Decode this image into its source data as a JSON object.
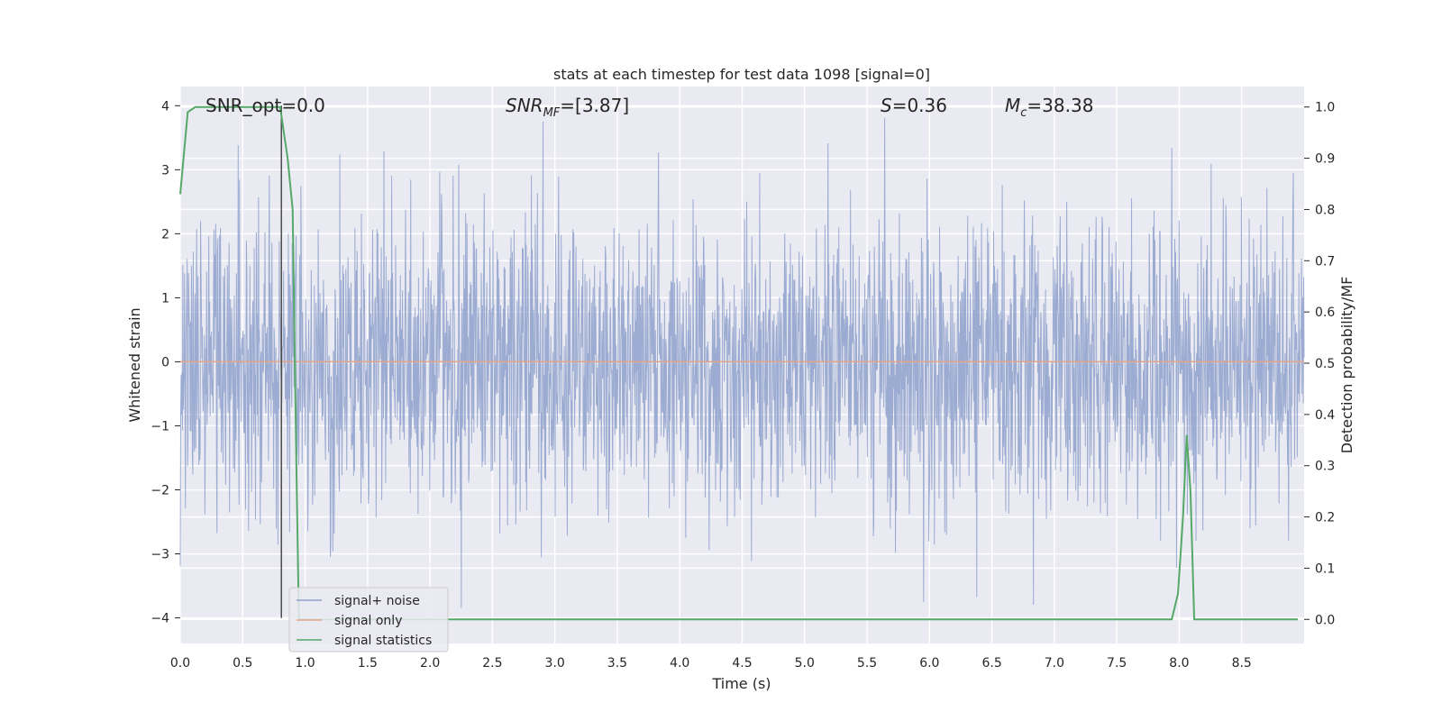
{
  "chart_data": {
    "type": "line",
    "title": "stats at each timestep for test data 1098 [signal=0]",
    "xlabel": "Time (s)",
    "ylabel": "Whitened strain",
    "y2label": "Detection probability/MF",
    "xlim": [
      0.0,
      9.0
    ],
    "ylim": [
      -4.4,
      4.3
    ],
    "y2lim": [
      -0.047,
      1.04
    ],
    "xticks": [
      "0.0",
      "0.5",
      "1.0",
      "1.5",
      "2.0",
      "2.5",
      "3.0",
      "3.5",
      "4.0",
      "4.5",
      "5.0",
      "5.5",
      "6.0",
      "6.5",
      "7.0",
      "7.5",
      "8.0",
      "8.5"
    ],
    "yticks": [
      "−4",
      "−3",
      "−2",
      "−1",
      "0",
      "1",
      "2",
      "3",
      "4"
    ],
    "y2ticks": [
      "0.0",
      "0.1",
      "0.2",
      "0.3",
      "0.4",
      "0.5",
      "0.6",
      "0.7",
      "0.8",
      "0.9",
      "1.0"
    ],
    "grid": true,
    "legend_position": "lower-left",
    "annotations": {
      "snr_opt": "SNR_opt=0.0",
      "snr_mf_base": "SNR",
      "snr_mf_sub": "MF",
      "snr_mf_value": "=[3.87]",
      "s_var": "S",
      "s_value": "=0.36",
      "mc_var": "M",
      "mc_sub": "c",
      "mc_value": "=38.38"
    },
    "vline_x": 0.81,
    "series": [
      {
        "name": "signal+ noise",
        "color": "#8da0cb",
        "description": "whitened strain noise, approx. gaussian",
        "noise_std": 1.15,
        "peak_max": 3.95,
        "peak_min": -3.85
      },
      {
        "name": "signal only",
        "color": "#e2a58a",
        "values_constant": 0.0
      },
      {
        "name": "signal statistics",
        "color": "#55a868",
        "axis": "right",
        "x": [
          0.0,
          0.06,
          0.12,
          0.2,
          0.5,
          0.8,
          0.86,
          0.9,
          0.93,
          0.95,
          1.0,
          2.0,
          4.0,
          6.0,
          7.94,
          7.99,
          8.03,
          8.06,
          8.09,
          8.12,
          8.18,
          8.5,
          8.95
        ],
        "y": [
          0.83,
          0.99,
          1.0,
          1.0,
          1.0,
          1.0,
          0.9,
          0.8,
          0.3,
          0.0,
          0.0,
          0.0,
          0.0,
          0.0,
          0.0,
          0.05,
          0.2,
          0.36,
          0.25,
          0.0,
          0.0,
          0.0,
          0.0
        ]
      }
    ]
  }
}
